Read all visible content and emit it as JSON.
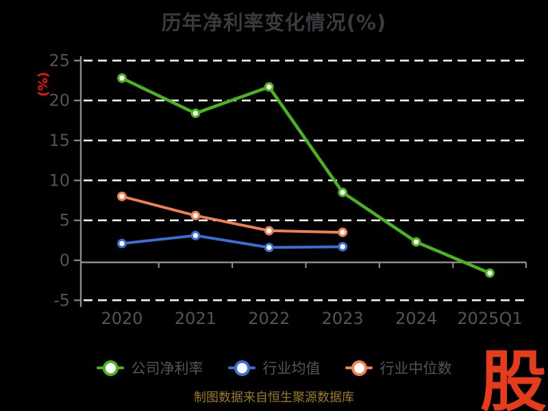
{
  "header": {
    "title": "历年净利率变化情况(%)"
  },
  "y_axis_label": "(%)",
  "footer": {
    "source_note": "制图数据来自恒生聚源数据库"
  },
  "watermark": {
    "text": "股"
  },
  "colors": {
    "background": "#000000",
    "grid": "#f2f2f2",
    "axis": "#8e8e8e",
    "tick_label": "#54545a",
    "title": "#3a3a3f",
    "accent_red": "#ee1511",
    "logo_red": "#e73c1c",
    "source_note": "#9b7d17",
    "legend_label": "#55555a",
    "marker_fill": "#ffffff"
  },
  "chart_data": {
    "type": "line",
    "title": "历年净利率变化情况(%)",
    "xlabel": "",
    "ylabel": "(%)",
    "categories": [
      "2020",
      "2021",
      "2022",
      "2023",
      "2024",
      "2025Q1"
    ],
    "series": [
      {
        "name": "公司净利率",
        "color": "#4ab41e",
        "values": [
          22.8,
          18.4,
          21.7,
          8.5,
          2.3,
          -1.6
        ]
      },
      {
        "name": "行业均值",
        "color": "#3b6fd6",
        "values": [
          2.1,
          3.1,
          1.6,
          1.7,
          null,
          null
        ]
      },
      {
        "name": "行业中位数",
        "color": "#f08050",
        "values": [
          8.0,
          5.6,
          3.7,
          3.5,
          null,
          null
        ]
      }
    ],
    "yticks": [
      25,
      20,
      15,
      10,
      5,
      0,
      -5
    ],
    "ylim": [
      -5,
      25
    ],
    "grid": true,
    "grid_style": "dashed-white",
    "legend_position": "bottom",
    "marker": "circle-white-fill"
  }
}
